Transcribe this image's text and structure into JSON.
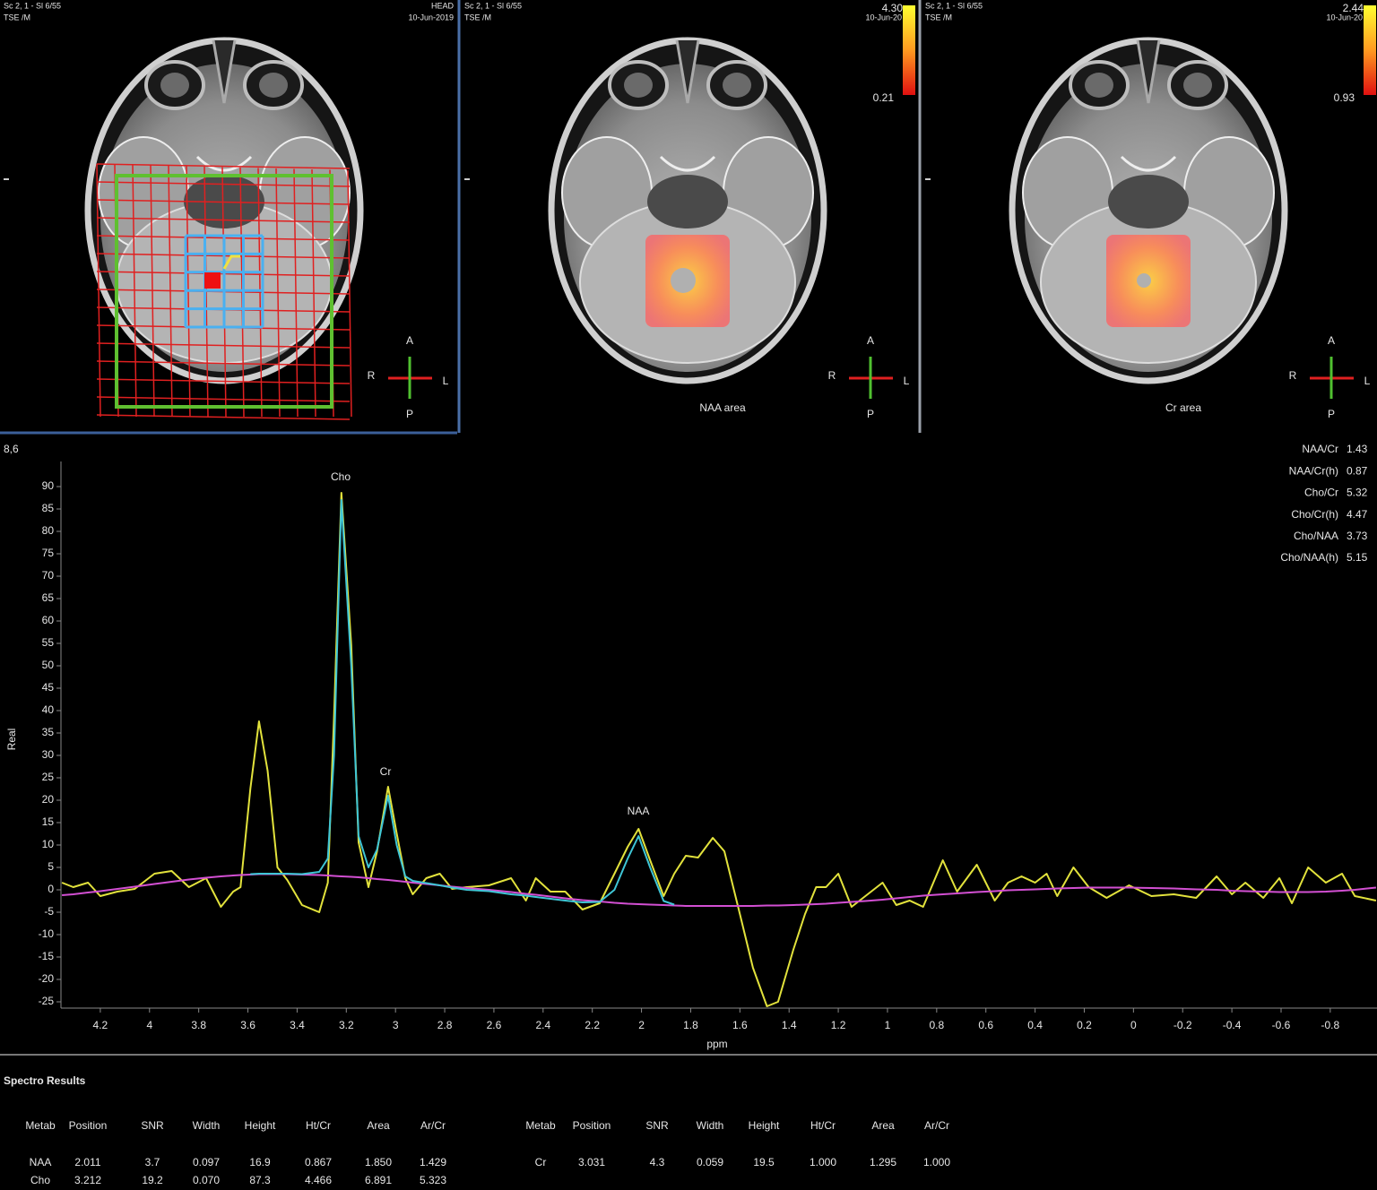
{
  "panels": [
    {
      "series_label": "Sc 2, 1 - Sl 6/55",
      "sequence": "TSE /M",
      "region": "HEAD",
      "date": "10-Jun-2019",
      "orientation": {
        "anterior": "A",
        "right": "R",
        "left": "L",
        "posterior": "P"
      }
    },
    {
      "series_label": "Sc 2, 1 - Sl 6/55",
      "sequence": "TSE /M",
      "scale_max": "4.30",
      "date": "10-Jun-20",
      "scale_min": "0.21",
      "caption": "NAA area",
      "orientation": {
        "anterior": "A",
        "right": "R",
        "left": "L",
        "posterior": "P"
      }
    },
    {
      "series_label": "Sc 2, 1 - Sl 6/55",
      "sequence": "TSE /M",
      "scale_max": "2.44",
      "date": "10-Jun-20",
      "scale_min": "0.93",
      "caption": "Cr area",
      "orientation": {
        "anterior": "A",
        "right": "R",
        "left": "L",
        "posterior": "P"
      }
    }
  ],
  "chart_data": {
    "type": "line",
    "voxel": "8,6",
    "y_label": "Real",
    "x_label": "ppm",
    "xlim": [
      4.36,
      -0.99
    ],
    "ylim": [
      -26.4,
      95.6
    ],
    "xticks": [
      4.2,
      4,
      3.8,
      3.6,
      3.4,
      3.2,
      3,
      2.8,
      2.6,
      2.4,
      2.2,
      2,
      1.8,
      1.6,
      1.4,
      1.2,
      1,
      0.8,
      0.6,
      0.4,
      0.2,
      0,
      -0.2,
      -0.4,
      -0.6,
      -0.8
    ],
    "yticks": [
      90,
      85,
      80,
      75,
      70,
      65,
      60,
      55,
      50,
      45,
      40,
      35,
      30,
      25,
      20,
      15,
      10,
      5,
      0,
      -5,
      -10,
      -15,
      -20,
      -25
    ],
    "grid": false,
    "x": [
      4.356,
      4.31,
      4.25,
      4.2,
      4.13,
      4.06,
      3.98,
      3.91,
      3.84,
      3.77,
      3.71,
      3.66,
      3.63,
      3.59,
      3.555,
      3.52,
      3.48,
      3.44,
      3.38,
      3.31,
      3.275,
      3.25,
      3.22,
      3.18,
      3.15,
      3.11,
      3.075,
      3.03,
      2.995,
      2.96,
      2.93,
      2.875,
      2.82,
      2.77,
      2.71,
      2.62,
      2.53,
      2.47,
      2.43,
      2.37,
      2.31,
      2.24,
      2.17,
      2.11,
      2.056,
      2.012,
      1.965,
      1.91,
      1.867,
      1.82,
      1.77,
      1.71,
      1.663,
      1.6,
      1.547,
      1.49,
      1.445,
      1.383,
      1.335,
      1.29,
      1.25,
      1.2,
      1.146,
      1.09,
      1.02,
      0.964,
      0.91,
      0.855,
      0.775,
      0.717,
      0.637,
      0.564,
      0.51,
      0.455,
      0.4,
      0.353,
      0.31,
      0.244,
      0.182,
      0.109,
      0.018,
      -0.073,
      -0.164,
      -0.255,
      -0.338,
      -0.4,
      -0.455,
      -0.528,
      -0.593,
      -0.644,
      -0.71,
      -0.782,
      -0.848,
      -0.9,
      -0.986
    ],
    "series": [
      {
        "color": "#e2e23c",
        "values": [
          1.6,
          0.6,
          1.6,
          -1.4,
          -0.4,
          0.2,
          3.6,
          4.2,
          0.6,
          2.6,
          -3.8,
          -0.4,
          0.6,
          22.6,
          37.6,
          26.6,
          5,
          2.2,
          -3.4,
          -5,
          1.6,
          38.6,
          88.6,
          54.6,
          10.6,
          0.6,
          8.6,
          23,
          12.6,
          2.6,
          -1,
          2.6,
          3.6,
          0.2,
          0.6,
          1,
          2.6,
          -2.4,
          2.6,
          -0.4,
          -0.4,
          -4.4,
          -3,
          3.6,
          9.6,
          13.6,
          6.6,
          -1.4,
          3.6,
          7.6,
          7.2,
          11.6,
          8.6,
          -5.4,
          -17.4,
          -26,
          -25,
          -13.4,
          -5.4,
          0.6,
          0.6,
          3.6,
          -3.8,
          -1.4,
          1.6,
          -3.4,
          -2.4,
          -3.8,
          6.6,
          -0.4,
          5.6,
          -2.4,
          1.6,
          3,
          1.6,
          3.6,
          -1.4,
          5,
          0.6,
          -1.8,
          1,
          -1.4,
          -1,
          -1.8,
          3,
          -1,
          1.6,
          -1.8,
          2.6,
          -3,
          5,
          1.6,
          3.6,
          -1.4,
          -2.4
        ]
      },
      {
        "color": "#d24fd2",
        "values": [
          -1.2,
          -1,
          -0.6,
          -0.3,
          0.2,
          0.7,
          1.3,
          1.8,
          2.3,
          2.7,
          3,
          3.2,
          3.3,
          3.4,
          3.5,
          3.5,
          3.5,
          3.5,
          3.4,
          3.3,
          3.2,
          3.1,
          3,
          2.9,
          2.8,
          2.6,
          2.4,
          2.2,
          2,
          1.8,
          1.6,
          1.3,
          1,
          0.7,
          0.4,
          0,
          -0.5,
          -0.9,
          -1.1,
          -1.5,
          -1.9,
          -2.3,
          -2.6,
          -2.9,
          -3.1,
          -3.2,
          -3.3,
          -3.4,
          -3.5,
          -3.6,
          -3.6,
          -3.6,
          -3.6,
          -3.6,
          -3.6,
          -3.5,
          -3.5,
          -3.4,
          -3.3,
          -3.2,
          -3.1,
          -2.9,
          -2.7,
          -2.5,
          -2.2,
          -1.9,
          -1.6,
          -1.3,
          -1,
          -0.8,
          -0.5,
          -0.3,
          -0.1,
          0,
          0.1,
          0.2,
          0.3,
          0.4,
          0.5,
          0.5,
          0.5,
          0.4,
          0.3,
          0.1,
          0,
          -0.2,
          -0.3,
          -0.4,
          -0.5,
          -0.5,
          -0.5,
          -0.4,
          -0.2,
          0,
          0.5
        ]
      },
      {
        "color": "#3fc6d6",
        "values": [
          null,
          null,
          null,
          null,
          null,
          null,
          null,
          null,
          null,
          null,
          null,
          null,
          null,
          3.5,
          3.6,
          3.6,
          3.6,
          3.6,
          3.5,
          4,
          7,
          30,
          87,
          50,
          12,
          5,
          9,
          21,
          10,
          3,
          2,
          1.5,
          1,
          0.5,
          0,
          -0.3,
          -1,
          -1.3,
          -1.6,
          -2,
          -2.4,
          -2.8,
          -2.7,
          0,
          7,
          12,
          5,
          -2.5,
          -3.3,
          null,
          null,
          null,
          null,
          null,
          null,
          null,
          null,
          null,
          null,
          null,
          null,
          null,
          null,
          null,
          null,
          null,
          null,
          null,
          null,
          null,
          null,
          null,
          null,
          null,
          null,
          null,
          null,
          null,
          null,
          null,
          null,
          null,
          null,
          null,
          null,
          null,
          null,
          null,
          null,
          null,
          null,
          null,
          null,
          null,
          null
        ]
      }
    ],
    "annotations": [
      "Cho",
      "Cr",
      "NAA"
    ],
    "ratios": [
      {
        "label": "NAA/Cr",
        "value": 1.43
      },
      {
        "label": "NAA/Cr(h)",
        "value": 0.87
      },
      {
        "label": "Cho/Cr",
        "value": 5.32
      },
      {
        "label": "Cho/Cr(h)",
        "value": 4.47
      },
      {
        "label": "Cho/NAA",
        "value": 3.73
      },
      {
        "label": "Cho/NAA(h)",
        "value": 5.15
      }
    ]
  },
  "results": {
    "title": "Spectro Results",
    "tables": [
      {
        "columns": [
          "Metab",
          "Position",
          "SNR",
          "Width",
          "Height",
          "Ht/Cr",
          "Area",
          "Ar/Cr"
        ],
        "rows": [
          [
            "NAA",
            "2.011",
            "3.7",
            "0.097",
            "16.9",
            "0.867",
            "1.850",
            "1.429"
          ],
          [
            "Cho",
            "3.212",
            "19.2",
            "0.070",
            "87.3",
            "4.466",
            "6.891",
            "5.323"
          ]
        ]
      },
      {
        "columns": [
          "Metab",
          "Position",
          "SNR",
          "Width",
          "Height",
          "Ht/Cr",
          "Area",
          "Ar/Cr"
        ],
        "rows": [
          [
            "Cr",
            "3.031",
            "4.3",
            "0.059",
            "19.5",
            "1.000",
            "1.295",
            "1.000"
          ]
        ]
      }
    ]
  }
}
